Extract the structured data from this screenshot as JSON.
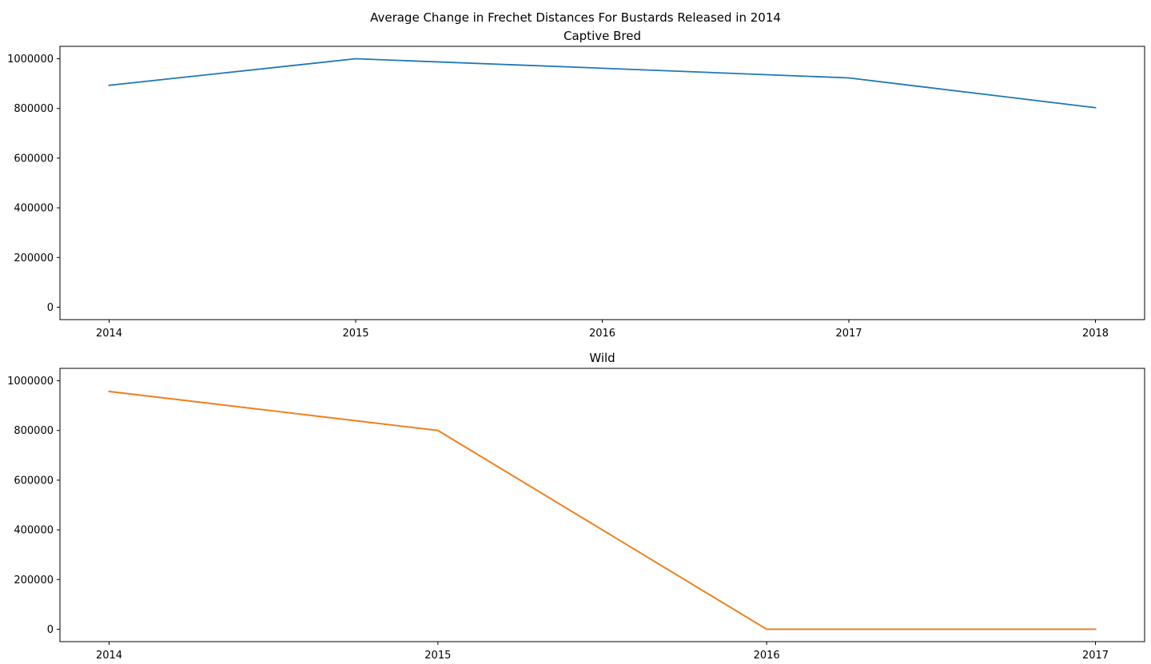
{
  "figure": {
    "title": "Average Change in Frechet Distances For Bustards Released in 2014"
  },
  "chart_data": [
    {
      "type": "line",
      "title": "Captive Bred",
      "xlabel": "",
      "ylabel": "",
      "x": [
        "2014",
        "2015",
        "2016",
        "2017",
        "2018"
      ],
      "yticks": [
        0,
        200000,
        400000,
        600000,
        800000,
        1000000
      ],
      "ylim": [
        -50000,
        1050000
      ],
      "grid": false,
      "series": [
        {
          "color": "#1f77b4",
          "values": [
            893000,
            1000000,
            962000,
            923000,
            803000
          ]
        }
      ]
    },
    {
      "type": "line",
      "title": "Wild",
      "xlabel": "",
      "ylabel": "",
      "x": [
        "2014",
        "2015",
        "2016",
        "2017"
      ],
      "yticks": [
        0,
        200000,
        400000,
        600000,
        800000,
        1000000
      ],
      "ylim": [
        -50000,
        1050000
      ],
      "grid": false,
      "series": [
        {
          "color": "#1f77b4",
          "values": [
            957000,
            800000,
            0,
            0
          ]
        },
        {
          "color": "#ff7f0e",
          "values": [
            957000,
            800000,
            0,
            0
          ]
        }
      ]
    }
  ]
}
